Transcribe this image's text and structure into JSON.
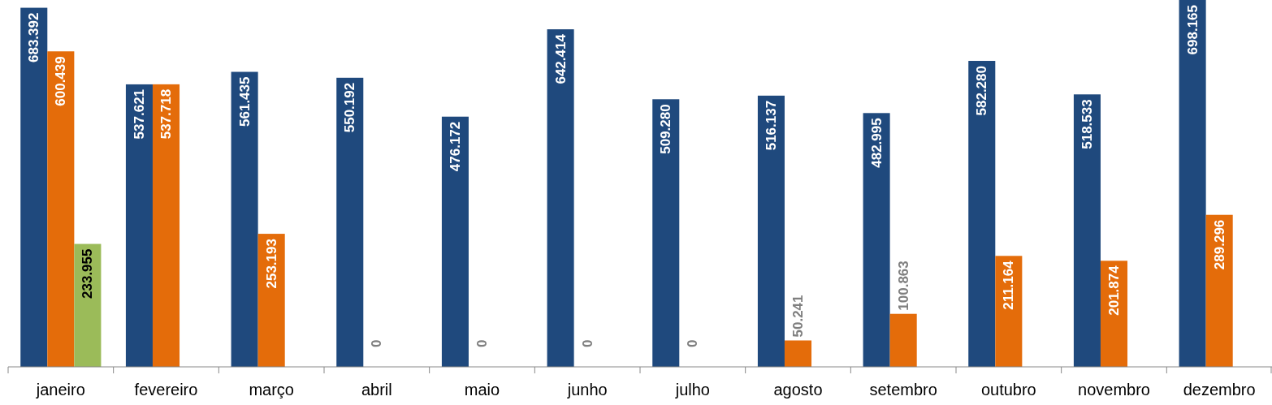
{
  "chart_data": {
    "type": "bar",
    "categories": [
      "janeiro",
      "fevereiro",
      "março",
      "abril",
      "maio",
      "junho",
      "julho",
      "agosto",
      "setembro",
      "outubro",
      "novembro",
      "dezembro"
    ],
    "series": [
      {
        "color": "#1f497d",
        "values": [
          683392,
          537621,
          561435,
          550192,
          476172,
          642414,
          509280,
          516137,
          482995,
          582280,
          518533,
          698165
        ],
        "value_labels": [
          "683.392",
          "537.621",
          "561.435",
          "550.192",
          "476.172",
          "642.414",
          "509.280",
          "516.137",
          "482.995",
          "582.280",
          "518.533",
          "698.165"
        ]
      },
      {
        "color": "#e46c0a",
        "values": [
          600439,
          537718,
          253193,
          0,
          0,
          0,
          0,
          50241,
          100863,
          211164,
          201874,
          289296
        ],
        "value_labels": [
          "600.439",
          "537.718",
          "253.193",
          "0",
          "0",
          "0",
          "0",
          "50.241",
          "100.863",
          "211.164",
          "201.874",
          "289.296"
        ]
      },
      {
        "color": "#9bbb59",
        "values": [
          233955,
          null,
          null,
          null,
          null,
          null,
          null,
          null,
          null,
          null,
          null,
          null
        ],
        "value_labels": [
          "233.955",
          null,
          null,
          null,
          null,
          null,
          null,
          null,
          null,
          null,
          null,
          null
        ]
      }
    ]
  }
}
